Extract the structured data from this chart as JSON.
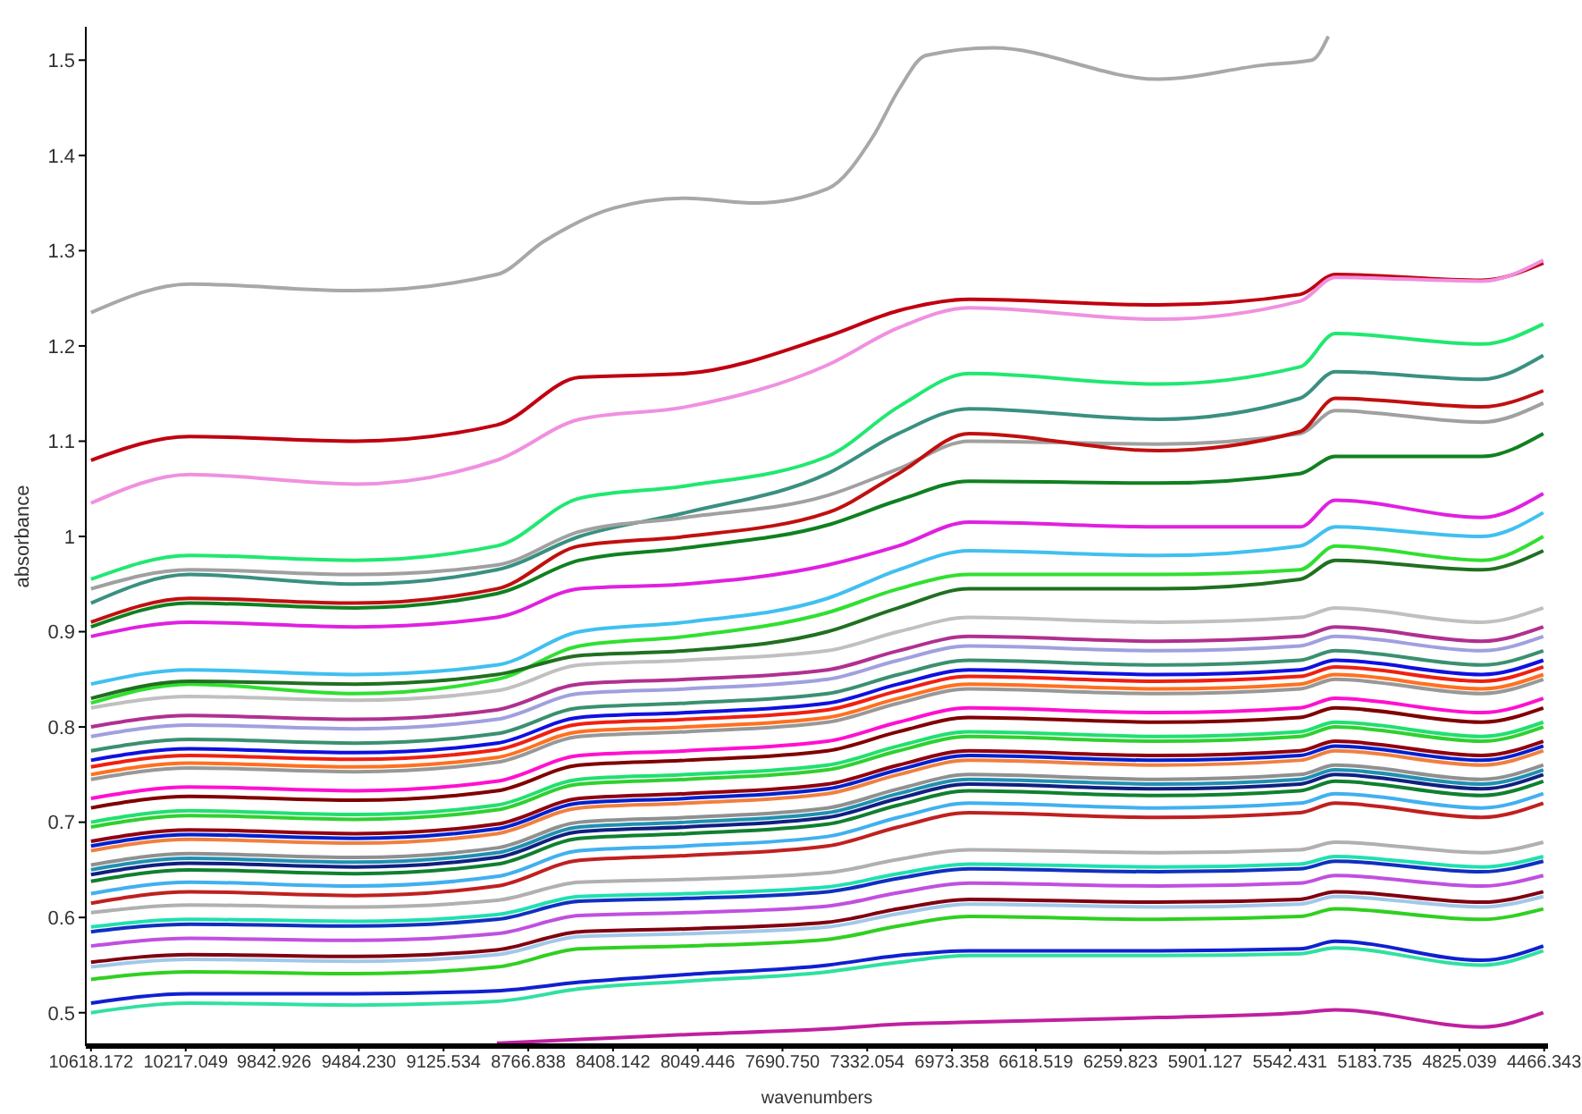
{
  "chart_data": {
    "type": "line",
    "xlabel": "wavenumbers",
    "ylabel": "absorbance",
    "x": [
      10618,
      10200,
      9500,
      8900,
      8550,
      8100,
      7500,
      7200,
      6900,
      6100,
      5500,
      5350,
      4730,
      4470
    ],
    "xlim": [
      10640,
      4450
    ],
    "ylim": [
      0.465,
      1.535
    ],
    "xticks": [
      10618.172,
      10217.049,
      9842.926,
      {
        "value": 9484.23,
        "label": "9484.230"
      },
      9125.534,
      8766.838,
      8408.142,
      8049.446,
      {
        "value": 7690.75,
        "label": "7690.750"
      },
      7332.054,
      6973.358,
      6618.519,
      6259.823,
      5901.127,
      5542.431,
      5183.735,
      4825.039,
      4466.343
    ],
    "yticks": [
      0.5,
      0.6,
      0.7,
      0.8,
      0.9,
      1,
      1.1,
      1.2,
      1.3,
      1.4,
      1.5
    ],
    "series": [
      {
        "color": "#a8a8a8",
        "x": [
          10618,
          10200,
          9500,
          8900,
          8700,
          8400,
          8100,
          7800,
          7500,
          7307,
          7196,
          7084,
          6800,
          6100,
          5650,
          5450,
          5380
        ],
        "values": [
          1.235,
          1.265,
          1.258,
          1.275,
          1.31,
          1.345,
          1.355,
          1.35,
          1.365,
          1.42,
          1.47,
          1.505,
          1.513,
          1.48,
          1.495,
          1.5,
          1.525
        ]
      },
      {
        "color": "#c00010",
        "values": [
          1.08,
          1.105,
          1.1,
          1.117,
          1.167,
          1.171,
          1.21,
          1.237,
          1.249,
          1.243,
          1.254,
          1.275,
          1.269,
          1.287
        ]
      },
      {
        "color": "#f090e0",
        "values": [
          1.035,
          1.065,
          1.055,
          1.08,
          1.123,
          1.136,
          1.18,
          1.219,
          1.24,
          1.228,
          1.247,
          1.272,
          1.268,
          1.29
        ]
      },
      {
        "color": "#20e870",
        "values": [
          0.955,
          0.98,
          0.975,
          0.99,
          1.04,
          1.053,
          1.084,
          1.136,
          1.171,
          1.16,
          1.178,
          1.213,
          1.202,
          1.223
        ]
      },
      {
        "color": "#3a9080",
        "values": [
          0.93,
          0.96,
          0.95,
          0.965,
          1.0,
          1.025,
          1.066,
          1.108,
          1.134,
          1.123,
          1.145,
          1.173,
          1.165,
          1.19
        ]
      },
      {
        "color": "#a0a0a0",
        "values": [
          0.945,
          0.965,
          0.96,
          0.97,
          1.005,
          1.02,
          1.043,
          1.071,
          1.1,
          1.097,
          1.108,
          1.132,
          1.12,
          1.14
        ]
      },
      {
        "color": "#c01010",
        "values": [
          0.91,
          0.935,
          0.93,
          0.945,
          0.99,
          1.0,
          1.025,
          1.066,
          1.108,
          1.09,
          1.11,
          1.145,
          1.136,
          1.153
        ]
      },
      {
        "color": "#108020",
        "values": [
          0.905,
          0.93,
          0.925,
          0.94,
          0.975,
          0.988,
          1.012,
          1.038,
          1.058,
          1.056,
          1.066,
          1.084,
          1.084,
          1.108
        ]
      },
      {
        "color": "#e020e0",
        "values": [
          0.895,
          0.91,
          0.905,
          0.915,
          0.945,
          0.95,
          0.97,
          0.99,
          1.015,
          1.01,
          1.01,
          1.038,
          1.02,
          1.045
        ]
      },
      {
        "color": "#40c0f0",
        "values": [
          0.845,
          0.86,
          0.855,
          0.865,
          0.9,
          0.91,
          0.935,
          0.965,
          0.985,
          0.98,
          0.99,
          1.01,
          1.0,
          1.025
        ]
      },
      {
        "color": "#30e030",
        "values": [
          0.825,
          0.845,
          0.835,
          0.85,
          0.885,
          0.895,
          0.92,
          0.945,
          0.96,
          0.96,
          0.965,
          0.99,
          0.975,
          1.0
        ]
      },
      {
        "color": "#207020",
        "values": [
          0.83,
          0.848,
          0.845,
          0.855,
          0.875,
          0.88,
          0.9,
          0.925,
          0.945,
          0.945,
          0.955,
          0.975,
          0.965,
          0.985
        ]
      },
      {
        "color": "#c0c0c0",
        "values": [
          0.82,
          0.832,
          0.828,
          0.838,
          0.865,
          0.87,
          0.88,
          0.9,
          0.915,
          0.91,
          0.915,
          0.925,
          0.91,
          0.925
        ]
      },
      {
        "color": "#b03090",
        "values": [
          0.8,
          0.812,
          0.808,
          0.818,
          0.845,
          0.85,
          0.86,
          0.88,
          0.895,
          0.89,
          0.895,
          0.905,
          0.89,
          0.905
        ]
      },
      {
        "color": "#a0a0e0",
        "values": [
          0.79,
          0.802,
          0.798,
          0.808,
          0.835,
          0.84,
          0.85,
          0.87,
          0.885,
          0.88,
          0.885,
          0.895,
          0.88,
          0.895
        ]
      },
      {
        "color": "#3a9070",
        "values": [
          0.775,
          0.787,
          0.783,
          0.793,
          0.82,
          0.825,
          0.835,
          0.855,
          0.87,
          0.865,
          0.87,
          0.88,
          0.865,
          0.88
        ]
      },
      {
        "color": "#1010e0",
        "values": [
          0.765,
          0.777,
          0.773,
          0.783,
          0.81,
          0.815,
          0.825,
          0.845,
          0.86,
          0.855,
          0.86,
          0.87,
          0.855,
          0.87
        ]
      },
      {
        "color": "#f02010",
        "values": [
          0.758,
          0.77,
          0.766,
          0.776,
          0.803,
          0.808,
          0.818,
          0.838,
          0.853,
          0.848,
          0.853,
          0.863,
          0.848,
          0.863
        ]
      },
      {
        "color": "#ff7020",
        "values": [
          0.75,
          0.762,
          0.758,
          0.768,
          0.795,
          0.8,
          0.81,
          0.83,
          0.845,
          0.84,
          0.845,
          0.855,
          0.84,
          0.855
        ]
      },
      {
        "color": "#989898",
        "values": [
          0.745,
          0.757,
          0.753,
          0.763,
          0.79,
          0.795,
          0.805,
          0.825,
          0.84,
          0.835,
          0.84,
          0.85,
          0.835,
          0.85
        ]
      },
      {
        "color": "#ff10d0",
        "values": [
          0.725,
          0.737,
          0.733,
          0.743,
          0.77,
          0.775,
          0.785,
          0.805,
          0.82,
          0.815,
          0.82,
          0.83,
          0.815,
          0.83
        ]
      },
      {
        "color": "#800000",
        "values": [
          0.715,
          0.727,
          0.723,
          0.733,
          0.76,
          0.765,
          0.775,
          0.795,
          0.81,
          0.805,
          0.81,
          0.82,
          0.805,
          0.82
        ]
      },
      {
        "color": "#20e070",
        "values": [
          0.7,
          0.712,
          0.708,
          0.718,
          0.745,
          0.75,
          0.76,
          0.78,
          0.795,
          0.79,
          0.795,
          0.805,
          0.79,
          0.805
        ]
      },
      {
        "color": "#30d030",
        "values": [
          0.695,
          0.707,
          0.703,
          0.713,
          0.74,
          0.745,
          0.755,
          0.775,
          0.79,
          0.785,
          0.79,
          0.8,
          0.785,
          0.8
        ]
      },
      {
        "color": "#900010",
        "values": [
          0.68,
          0.692,
          0.688,
          0.698,
          0.725,
          0.73,
          0.74,
          0.76,
          0.775,
          0.77,
          0.775,
          0.785,
          0.77,
          0.785
        ]
      },
      {
        "color": "#0020d0",
        "values": [
          0.675,
          0.687,
          0.683,
          0.693,
          0.72,
          0.725,
          0.735,
          0.755,
          0.77,
          0.765,
          0.77,
          0.78,
          0.765,
          0.78
        ]
      },
      {
        "color": "#f08040",
        "values": [
          0.67,
          0.682,
          0.678,
          0.688,
          0.715,
          0.72,
          0.73,
          0.75,
          0.765,
          0.76,
          0.765,
          0.775,
          0.76,
          0.775
        ]
      },
      {
        "color": "#909090",
        "values": [
          0.655,
          0.667,
          0.663,
          0.673,
          0.7,
          0.705,
          0.715,
          0.735,
          0.75,
          0.745,
          0.75,
          0.76,
          0.745,
          0.76
        ]
      },
      {
        "color": "#2090b0",
        "values": [
          0.65,
          0.662,
          0.658,
          0.668,
          0.695,
          0.7,
          0.71,
          0.73,
          0.745,
          0.74,
          0.745,
          0.755,
          0.74,
          0.755
        ]
      },
      {
        "color": "#102080",
        "values": [
          0.645,
          0.657,
          0.653,
          0.663,
          0.69,
          0.695,
          0.705,
          0.725,
          0.74,
          0.735,
          0.74,
          0.75,
          0.735,
          0.75
        ]
      },
      {
        "color": "#108030",
        "values": [
          0.638,
          0.65,
          0.646,
          0.656,
          0.683,
          0.688,
          0.698,
          0.718,
          0.733,
          0.728,
          0.733,
          0.743,
          0.728,
          0.743
        ]
      },
      {
        "color": "#40b0f0",
        "values": [
          0.625,
          0.637,
          0.633,
          0.643,
          0.67,
          0.675,
          0.685,
          0.705,
          0.72,
          0.715,
          0.72,
          0.73,
          0.715,
          0.73
        ]
      },
      {
        "color": "#c02020",
        "values": [
          0.615,
          0.627,
          0.623,
          0.633,
          0.66,
          0.665,
          0.675,
          0.695,
          0.71,
          0.705,
          0.71,
          0.72,
          0.705,
          0.72
        ]
      },
      {
        "color": "#b0b0b0",
        "values": [
          0.605,
          0.613,
          0.611,
          0.618,
          0.637,
          0.64,
          0.647,
          0.661,
          0.671,
          0.668,
          0.671,
          0.679,
          0.668,
          0.679
        ]
      },
      {
        "color": "#20e0b0",
        "values": [
          0.59,
          0.598,
          0.596,
          0.603,
          0.622,
          0.625,
          0.632,
          0.646,
          0.656,
          0.653,
          0.656,
          0.664,
          0.653,
          0.664
        ]
      },
      {
        "color": "#1030c0",
        "values": [
          0.585,
          0.593,
          0.591,
          0.598,
          0.617,
          0.62,
          0.627,
          0.641,
          0.651,
          0.648,
          0.651,
          0.659,
          0.648,
          0.659
        ]
      },
      {
        "color": "#c050e0",
        "values": [
          0.57,
          0.578,
          0.576,
          0.583,
          0.602,
          0.605,
          0.612,
          0.626,
          0.636,
          0.633,
          0.636,
          0.644,
          0.633,
          0.644
        ]
      },
      {
        "color": "#800010",
        "values": [
          0.553,
          0.561,
          0.559,
          0.566,
          0.585,
          0.588,
          0.595,
          0.609,
          0.619,
          0.616,
          0.619,
          0.627,
          0.616,
          0.627
        ]
      },
      {
        "color": "#a0c8e8",
        "values": [
          0.548,
          0.556,
          0.554,
          0.561,
          0.58,
          0.583,
          0.59,
          0.604,
          0.614,
          0.611,
          0.614,
          0.622,
          0.611,
          0.622
        ]
      },
      {
        "color": "#30d020",
        "values": [
          0.535,
          0.543,
          0.541,
          0.548,
          0.567,
          0.57,
          0.577,
          0.591,
          0.601,
          0.598,
          0.601,
          0.609,
          0.598,
          0.609
        ]
      },
      {
        "color": "#1020d0",
        "values": [
          0.51,
          0.52,
          0.52,
          0.523,
          0.532,
          0.54,
          0.55,
          0.56,
          0.565,
          0.565,
          0.567,
          0.575,
          0.555,
          0.57
        ]
      },
      {
        "color": "#30e0a0",
        "values": [
          0.5,
          0.51,
          0.508,
          0.512,
          0.525,
          0.533,
          0.543,
          0.553,
          0.56,
          0.56,
          0.562,
          0.568,
          0.55,
          0.565
        ]
      },
      {
        "color": "#c020a0",
        "values": [
          null,
          null,
          null,
          0.468,
          0.472,
          0.477,
          0.483,
          0.488,
          0.49,
          0.495,
          0.5,
          0.503,
          0.485,
          0.5
        ]
      }
    ]
  }
}
